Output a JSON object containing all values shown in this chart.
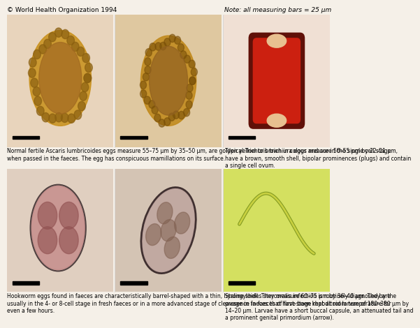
{
  "title_left": "© World Health Organization 1994",
  "title_right": "Note: all measuring bars = 25 μm",
  "bg_color": "#f5f0e8",
  "panel_bg_colors": [
    "#d4b896",
    "#c8a878",
    "#e8d0c0",
    "#d0c0b0",
    "#c8b8a8",
    "#d8e8a0"
  ],
  "caption_left_1": "Normal fertile Ascaris lumbricoides eggs measure 55–75 μm by 35–50 μm, are golden yellow to brown in colour and are in the single cell stage\nwhen passed in the faeces. The egg has conspicuous mamillations on its surface.",
  "caption_right_1": "Typical Trichuris trichiura eggs measure 50–55 μm by 22–21 μm,\nhave a brown, smooth shell, bipolar prominences (plugs) and contain\na single cell ovum.",
  "caption_left_2": "Hookworm eggs found in faeces are characteristically barrel-shaped with a thin, hyaline shell. They measure 60–75 μm by 36–40 μm. They are\nusually in the 4- or 8-cell stage in fresh faeces or in a more advanced stage of cleavage in faeces that have been kept at room temperature for\neven a few hours.",
  "caption_right_2": "Strongyloides stercoralis infection is routinely diagnosed by the\npresence in faeces of first-stage rhabditoid larvae of 180–380 μm by\n14–20 μm. Larvae have a short buccal capsule, an attenuated tail and\na prominent genital primordium (arrow).",
  "ascaris_italic": "Ascaris lumbricoides",
  "trichuris_italic": "Trichuris trichiura",
  "hookworm_italic": "Hookworm",
  "strongyloides_italic": "Strongyloides stercoralis",
  "red_color": "#cc2200",
  "grid_line_color": "#888888",
  "caption_fontsize": 5.5,
  "header_fontsize": 6.5
}
